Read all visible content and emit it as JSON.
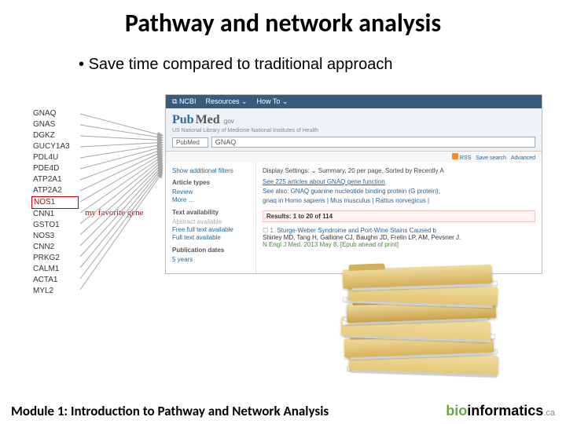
{
  "slide": {
    "title": "Pathway and network analysis",
    "bullet": "Save time compared to traditional approach",
    "footer_left": "Module 1: Introduction to Pathway and Network Analysis",
    "footer_brand_bold": "bio",
    "footer_brand_rest": "informatics",
    "footer_brand_suffix": ".ca"
  },
  "genes": {
    "highlight_index": 8,
    "favorite_label": "my favorite gene",
    "list": [
      "GNAQ",
      "GNAS",
      "DGKZ",
      "GUCY1A3",
      "PDL4U",
      "PDE4D",
      "ATP2A1",
      "ATP2A2",
      "NOS1",
      "CNN1",
      "GSTO1",
      "NOS3",
      "CNN2",
      "PRKG2",
      "CALM1",
      "ACTA1",
      "MYL2"
    ]
  },
  "pubmed": {
    "ncbi_label": "NCBI",
    "ncbi_resources": "Resources ⌄",
    "ncbi_howto": "How To ⌄",
    "logo_a": "Pub",
    "logo_b": "Med",
    "logo_gov": ".gov",
    "subline": "US National Library of Medicine National Institutes of Health",
    "search_select": "PubMed",
    "search_value": "GNAQ",
    "rss_label": "RSS",
    "save_search": "Save search",
    "advanced": "Advanced",
    "filters": {
      "show_more": "Show additional filters",
      "article_types": "Article types",
      "review": "Review",
      "more": "More …",
      "text_avail": "Text availability",
      "abs": "Abstract available",
      "free": "Free full text available",
      "full": "Full text available",
      "pubdates": "Publication dates",
      "five": "5 years"
    },
    "display": "Display Settings: ⌄ Summary, 20 per page, Sorted by Recently A",
    "see1": "See 225 articles about GNAQ gene function",
    "see2": "See also: GNAQ guanine nucleotide binding protein (G protein),",
    "see3": "gnaq in Homo sapiens | Mus musculus | Rattus norvegicus |",
    "results_label": "Results: 1 to 20 of 114",
    "article_title": "Sturge-Weber Syndrome and Port-Wine Stains Caused b",
    "article_authors": "Shirley MD, Tang H, Gallione CJ, Baughn JD, Frelin LP, AM, Pevsner J.",
    "article_meta": "N Engl J Med. 2013 May 8. [Epub ahead of print]"
  },
  "style": {
    "title_fontsize": 32,
    "bg": "#ffffff",
    "accent_red": "#c00000",
    "arrow_color": "#a6a6a6",
    "ncbi_blue": "#3a5b7b",
    "link_blue": "#2a6496",
    "folder_colors": [
      "#e6c978",
      "#d8b45a",
      "#e8cc80",
      "#c9a24a",
      "#e3c471",
      "#d3af58"
    ]
  }
}
